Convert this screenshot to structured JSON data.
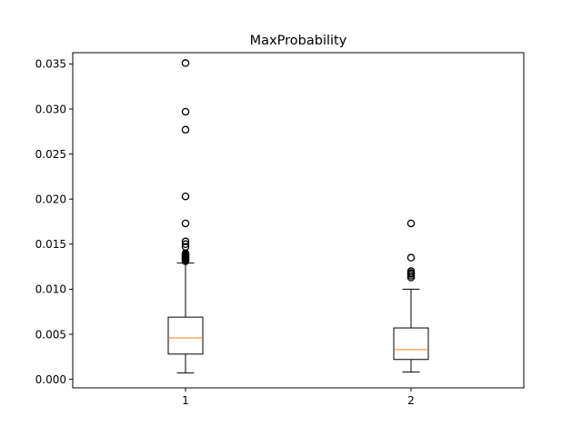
{
  "chart_data": {
    "type": "box",
    "title": "MaxProbability",
    "xlabel": "",
    "ylabel": "",
    "categories": [
      "1",
      "2"
    ],
    "ylim": [
      -0.00095,
      0.03625
    ],
    "yticks": [
      "0.000",
      "0.005",
      "0.010",
      "0.015",
      "0.020",
      "0.025",
      "0.030",
      "0.035"
    ],
    "grid": false,
    "boxes": [
      {
        "name": "1",
        "whisker_low": 0.0007,
        "q1": 0.0028,
        "median": 0.0046,
        "q3": 0.0069,
        "whisker_high": 0.0129,
        "outliers": [
          0.0131,
          0.0132,
          0.0133,
          0.0134,
          0.0135,
          0.0136,
          0.0137,
          0.0138,
          0.0139,
          0.014,
          0.0147,
          0.015,
          0.0153,
          0.0173,
          0.0203,
          0.0277,
          0.0297,
          0.0351
        ]
      },
      {
        "name": "2",
        "whisker_low": 0.0008,
        "q1": 0.0022,
        "median": 0.0033,
        "q3": 0.0057,
        "whisker_high": 0.01,
        "outliers": [
          0.0113,
          0.0115,
          0.0117,
          0.0118,
          0.012,
          0.0135,
          0.0173
        ]
      }
    ],
    "colors": {
      "box": "#000000",
      "median": "#ff7f0e",
      "flier": "#000000",
      "background": "#ffffff"
    }
  }
}
